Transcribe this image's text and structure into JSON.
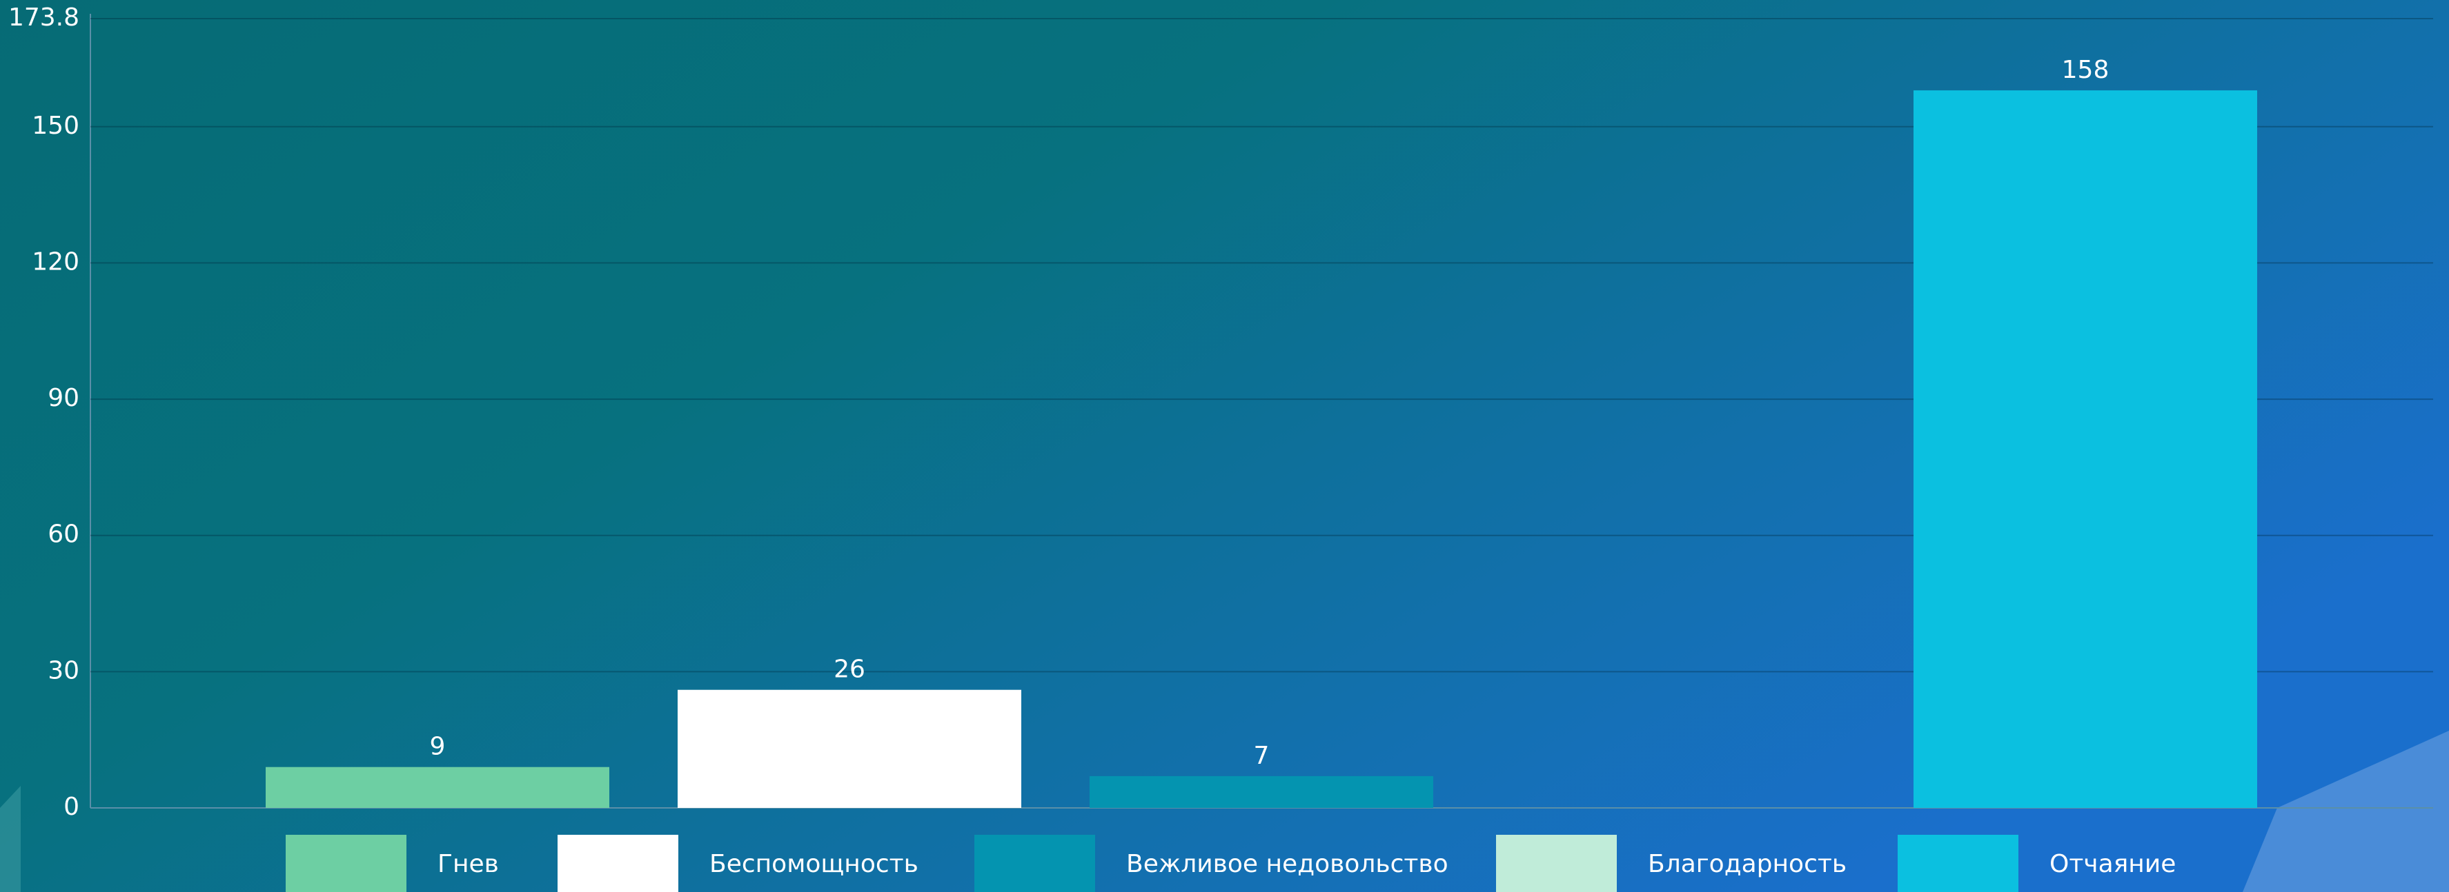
{
  "chart_data": {
    "type": "bar",
    "categories": [
      "Гнев",
      "Беспомощность",
      "Вежливое недовольство",
      "Благодарность",
      "Отчаяние"
    ],
    "values": [
      9,
      26,
      7,
      null,
      158
    ],
    "colors": [
      "#6dcfa3",
      "#ffffff",
      "#0494b0",
      "#c0ecd9",
      "#0bc0e0"
    ],
    "ylim": [
      0,
      173.8
    ],
    "yticks": [
      0,
      30,
      60,
      90,
      120,
      150,
      173.8
    ],
    "grid": true
  }
}
